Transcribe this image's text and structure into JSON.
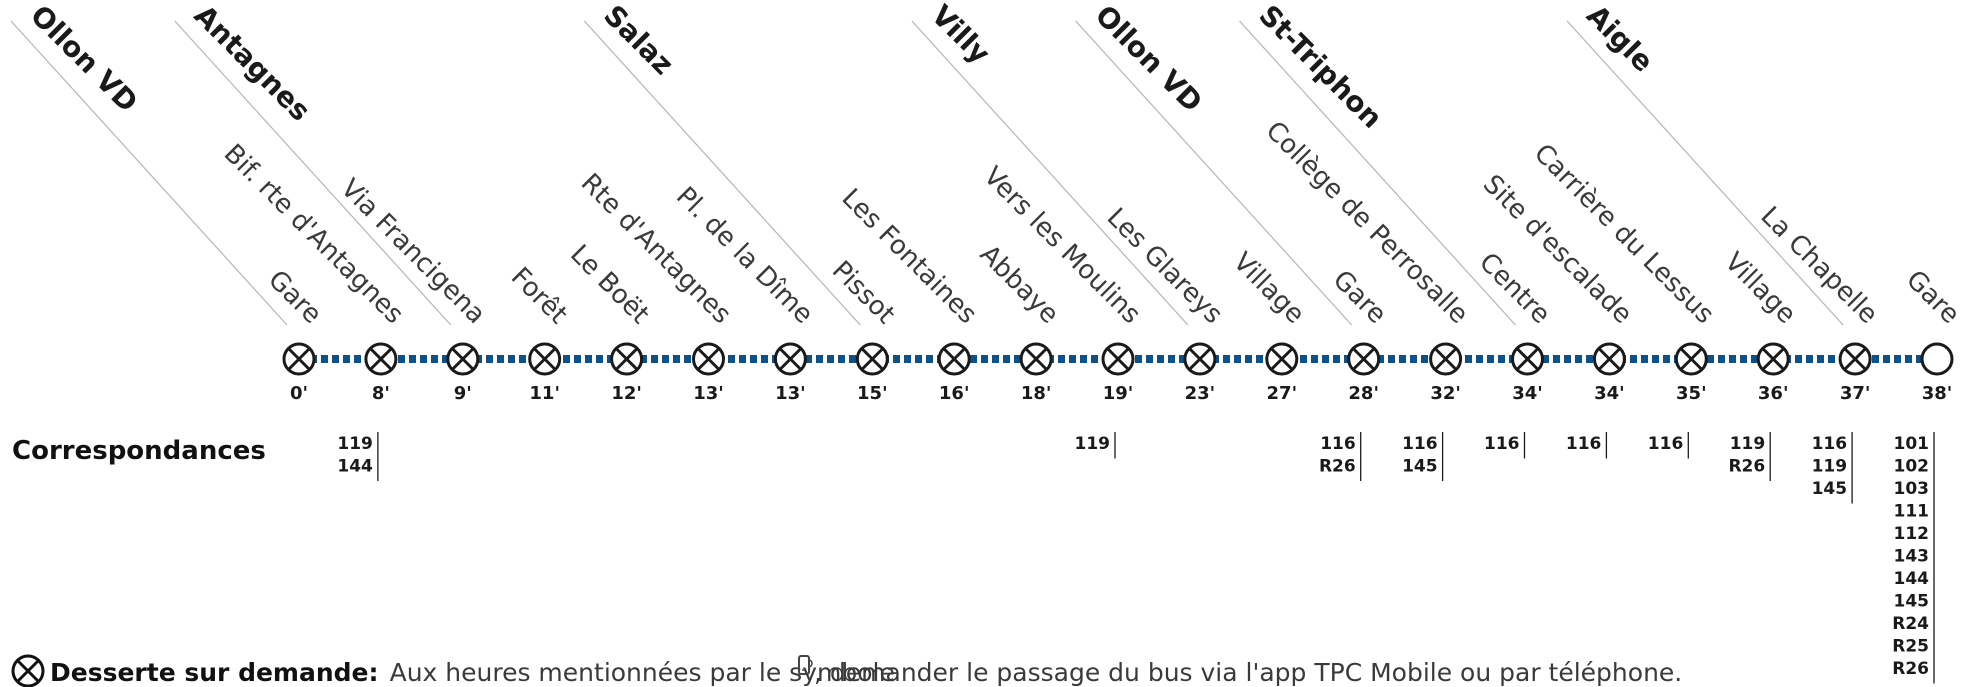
{
  "colors": {
    "line": "#0e5186",
    "ink": "#1a1a1a",
    "guide": "#b5b5b5"
  },
  "stops": [
    {
      "town": "Ollon VD",
      "name": "Gare",
      "time": "0'",
      "on_demand": true,
      "connections": []
    },
    {
      "town": "",
      "name": "Bif. rte d'Antagnes",
      "time": "8'",
      "on_demand": true,
      "connections": [
        "119",
        "144"
      ]
    },
    {
      "town": "Antagnes",
      "name": "Via Francigena",
      "time": "9'",
      "on_demand": true,
      "connections": []
    },
    {
      "town": "",
      "name": "Forêt",
      "time": "11'",
      "on_demand": true,
      "connections": []
    },
    {
      "town": "",
      "name": "Le Boët",
      "time": "12'",
      "on_demand": true,
      "connections": []
    },
    {
      "town": "",
      "name": "Rte d'Antagnes",
      "time": "13'",
      "on_demand": true,
      "connections": []
    },
    {
      "town": "",
      "name": "Pl. de la Dîme",
      "time": "13'",
      "on_demand": true,
      "connections": []
    },
    {
      "town": "Salaz",
      "name": "Pissot",
      "time": "15'",
      "on_demand": true,
      "connections": []
    },
    {
      "town": "",
      "name": "Les Fontaines",
      "time": "16'",
      "on_demand": true,
      "connections": []
    },
    {
      "town": "",
      "name": "Abbaye",
      "time": "18'",
      "on_demand": true,
      "connections": []
    },
    {
      "town": "",
      "name": "Vers les Moulins",
      "time": "19'",
      "on_demand": true,
      "connections": [
        "119"
      ]
    },
    {
      "town": "Villy",
      "name": "Les Glareys",
      "time": "23'",
      "on_demand": true,
      "connections": []
    },
    {
      "town": "",
      "name": "Village",
      "time": "27'",
      "on_demand": true,
      "connections": []
    },
    {
      "town": "Ollon VD",
      "name": "Gare",
      "time": "28'",
      "on_demand": true,
      "connections": [
        "116",
        "R26"
      ]
    },
    {
      "town": "",
      "name": "Collège de Perrosalle",
      "time": "32'",
      "on_demand": true,
      "connections": [
        "116",
        "145"
      ]
    },
    {
      "town": "St-Triphon",
      "name": "Centre",
      "time": "34'",
      "on_demand": true,
      "connections": [
        "116"
      ]
    },
    {
      "town": "",
      "name": "Site d'escalade",
      "time": "34'",
      "on_demand": true,
      "connections": [
        "116"
      ]
    },
    {
      "town": "",
      "name": "Carrière du Lessus",
      "time": "35'",
      "on_demand": true,
      "connections": [
        "116"
      ]
    },
    {
      "town": "",
      "name": "Village",
      "time": "36'",
      "on_demand": true,
      "connections": [
        "119",
        "R26"
      ]
    },
    {
      "town": "Aigle",
      "name": "La Chapelle",
      "time": "37'",
      "on_demand": true,
      "connections": [
        "116",
        "119",
        "145"
      ]
    },
    {
      "town": "",
      "name": "Gare",
      "time": "38'",
      "on_demand": false,
      "connections": [
        "101",
        "102",
        "103",
        "111",
        "112",
        "143",
        "144",
        "145",
        "R24",
        "R25",
        "R26"
      ]
    }
  ],
  "correspondances_label": "Correspondances",
  "legend": {
    "icon": "on-demand-stop-icon",
    "bold": "Desserte sur demande:",
    "text_before": "Aux heures mentionnées par le symbole",
    "symbol_icon": "phone-icon",
    "text_after": ", demander le passage du bus via l'app TPC Mobile ou par téléphone."
  }
}
